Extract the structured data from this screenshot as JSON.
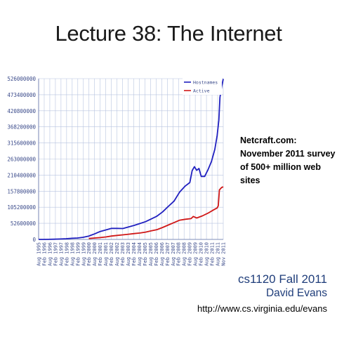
{
  "slide": {
    "title": "Lecture 38: The Internet",
    "note_lines": [
      "Netcraft.com:",
      "November 2011 survey",
      "of 500+ million web",
      "sites"
    ],
    "course": "cs1120 Fall 2011",
    "author": "David Evans",
    "url": "http://www.cs.virginia.edu/evans"
  },
  "chart_data": {
    "type": "line",
    "ylim": [
      0,
      526000000
    ],
    "y_ticks": [
      "526000000",
      "473400000",
      "420800000",
      "368200000",
      "315600000",
      "263000000",
      "210400000",
      "157800000",
      "105200000",
      "52600000",
      "0"
    ],
    "x_ticks": [
      "Aug 1995",
      "Feb 1996",
      "Aug 1996",
      "Feb 1997",
      "Aug 1997",
      "Feb 1998",
      "Aug 1998",
      "Feb 1999",
      "Aug 1999",
      "Feb 2000",
      "Aug 2000",
      "Feb 2001",
      "Aug 2001",
      "Feb 2002",
      "Aug 2002",
      "Feb 2003",
      "Aug 2003",
      "Feb 2004",
      "Aug 2004",
      "Feb 2005",
      "Aug 2005",
      "Feb 2006",
      "Aug 2006",
      "Feb 2007",
      "Aug 2007",
      "Feb 2008",
      "Aug 2008",
      "Feb 2009",
      "Aug 2009",
      "Feb 2010",
      "Aug 2010",
      "Feb 2011",
      "Aug 2011",
      "Nov 2011"
    ],
    "x_range": [
      1995.58,
      2011.84
    ],
    "grid": true,
    "legend_position": "top-right",
    "series": [
      {
        "name": "Hostnames",
        "color": "#2020c0",
        "points": [
          [
            1995.58,
            18957
          ],
          [
            1996.0,
            100000
          ],
          [
            1996.5,
            300000
          ],
          [
            1997.0,
            650000
          ],
          [
            1997.5,
            1300000
          ],
          [
            1998.0,
            2300000
          ],
          [
            1998.5,
            3600000
          ],
          [
            1999.0,
            4500000
          ],
          [
            1999.5,
            7000000
          ],
          [
            2000.0,
            11000000
          ],
          [
            2000.5,
            18000000
          ],
          [
            2001.0,
            26000000
          ],
          [
            2001.5,
            31000000
          ],
          [
            2002.0,
            36000000
          ],
          [
            2002.5,
            36000000
          ],
          [
            2003.0,
            35500000
          ],
          [
            2003.5,
            41000000
          ],
          [
            2004.0,
            46000000
          ],
          [
            2004.5,
            52000000
          ],
          [
            2005.0,
            58000000
          ],
          [
            2005.5,
            67000000
          ],
          [
            2006.0,
            76000000
          ],
          [
            2006.5,
            90000000
          ],
          [
            2007.0,
            108000000
          ],
          [
            2007.5,
            125000000
          ],
          [
            2008.0,
            155000000
          ],
          [
            2008.5,
            175000000
          ],
          [
            2008.9,
            186000000
          ],
          [
            2009.1,
            225000000
          ],
          [
            2009.3,
            238000000
          ],
          [
            2009.5,
            226000000
          ],
          [
            2009.7,
            232000000
          ],
          [
            2009.9,
            206000000
          ],
          [
            2010.2,
            206000000
          ],
          [
            2010.5,
            228000000
          ],
          [
            2010.8,
            255000000
          ],
          [
            2011.1,
            295000000
          ],
          [
            2011.3,
            340000000
          ],
          [
            2011.45,
            390000000
          ],
          [
            2011.55,
            465000000
          ],
          [
            2011.7,
            500000000
          ],
          [
            2011.84,
            525000000
          ]
        ]
      },
      {
        "name": "Active",
        "color": "#d01818",
        "points": [
          [
            2000.0,
            3000000
          ],
          [
            2000.5,
            4500000
          ],
          [
            2001.0,
            6000000
          ],
          [
            2001.5,
            8000000
          ],
          [
            2002.0,
            11000000
          ],
          [
            2002.5,
            13000000
          ],
          [
            2003.0,
            15000000
          ],
          [
            2003.5,
            17000000
          ],
          [
            2004.0,
            19000000
          ],
          [
            2004.5,
            21000000
          ],
          [
            2005.0,
            24000000
          ],
          [
            2005.5,
            28000000
          ],
          [
            2006.0,
            32000000
          ],
          [
            2006.5,
            39000000
          ],
          [
            2007.0,
            47000000
          ],
          [
            2007.5,
            55000000
          ],
          [
            2008.0,
            63000000
          ],
          [
            2008.5,
            66000000
          ],
          [
            2009.0,
            68000000
          ],
          [
            2009.2,
            75000000
          ],
          [
            2009.5,
            70000000
          ],
          [
            2010.0,
            77000000
          ],
          [
            2010.5,
            86000000
          ],
          [
            2011.0,
            97000000
          ],
          [
            2011.3,
            103000000
          ],
          [
            2011.4,
            110000000
          ],
          [
            2011.5,
            162000000
          ],
          [
            2011.7,
            170000000
          ],
          [
            2011.84,
            172000000
          ]
        ]
      }
    ]
  }
}
